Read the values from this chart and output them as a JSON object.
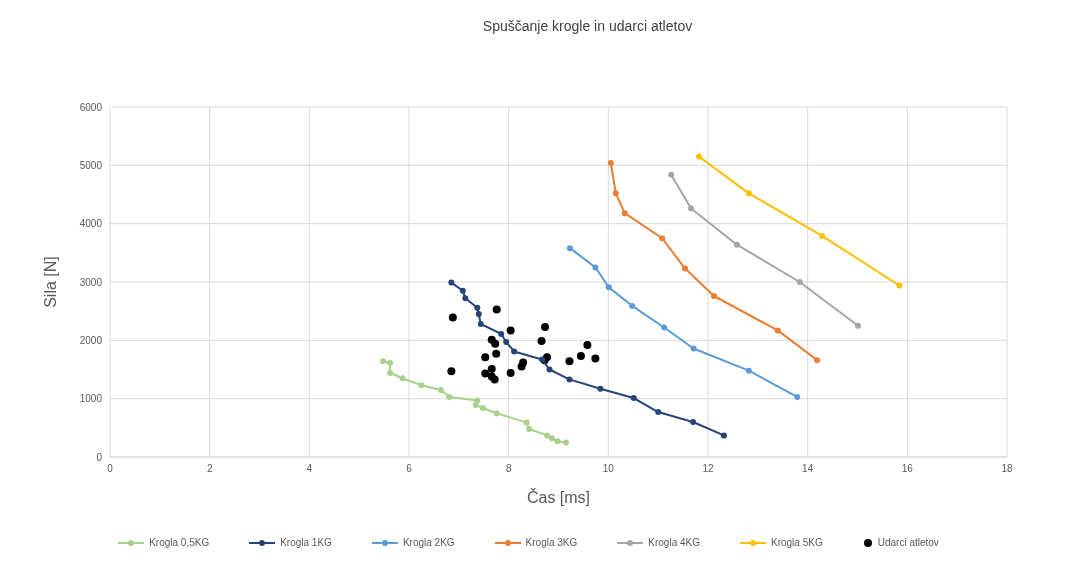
{
  "chart_data": {
    "type": "line",
    "title": "Spuščanje krogle in udarci atletov",
    "xlabel": "Čas [ms]",
    "ylabel": "Sila [N]",
    "xlim": [
      0,
      18
    ],
    "xticks": [
      0,
      2,
      4,
      6,
      8,
      10,
      12,
      14,
      16,
      18
    ],
    "ylim": [
      0,
      6000
    ],
    "yticks": [
      0,
      1000,
      2000,
      3000,
      4000,
      5000,
      6000
    ],
    "grid": true,
    "legend": "bottom",
    "marker": "circle",
    "line_style": "solid",
    "series": [
      {
        "name": "Krogla 0,5KG",
        "color": "#a9d18e",
        "x": [
          5.48,
          5.62,
          5.62,
          5.87,
          6.25,
          6.64,
          6.81,
          7.37,
          7.34,
          7.48,
          7.76,
          8.36,
          8.41,
          8.77,
          8.87,
          8.98,
          9.15
        ],
        "values": [
          1640,
          1610,
          1440,
          1350,
          1230,
          1150,
          1030,
          970,
          890,
          840,
          750,
          590,
          480,
          370,
          320,
          270,
          250
        ]
      },
      {
        "name": "Krogla 1KG",
        "color": "#264478",
        "x": [
          6.85,
          7.08,
          7.13,
          7.37,
          7.4,
          7.44,
          7.85,
          7.95,
          8.11,
          8.67,
          8.82,
          9.22,
          9.84,
          10.51,
          11.0,
          11.7,
          12.32
        ],
        "values": [
          2990,
          2850,
          2720,
          2560,
          2450,
          2280,
          2110,
          1970,
          1810,
          1670,
          1500,
          1330,
          1170,
          1010,
          770,
          600,
          370
        ]
      },
      {
        "name": "Krogla 2KG",
        "color": "#5b9bd5",
        "x": [
          9.23,
          9.74,
          10.01,
          10.48,
          11.12,
          11.71,
          12.82,
          13.79
        ],
        "values": [
          3580,
          3250,
          2910,
          2590,
          2220,
          1860,
          1480,
          1030
        ]
      },
      {
        "name": "Krogla 3KG",
        "color": "#ed7d31",
        "x": [
          10.05,
          10.15,
          10.33,
          11.08,
          11.54,
          12.12,
          13.4,
          14.19
        ],
        "values": [
          5040,
          4520,
          4180,
          3750,
          3230,
          2760,
          2170,
          1660
        ]
      },
      {
        "name": "Krogla 4KG",
        "color": "#a5a5a5",
        "x": [
          11.26,
          11.66,
          12.58,
          13.84,
          15.01
        ],
        "values": [
          4840,
          4260,
          3640,
          3000,
          2250
        ]
      },
      {
        "name": "Krogla 5KG",
        "color": "#ffc000",
        "x": [
          11.82,
          12.82,
          14.29,
          15.84
        ],
        "values": [
          5150,
          4520,
          3790,
          2940
        ]
      },
      {
        "name": "Udarci atletov",
        "type": "scatter",
        "color": "#000000",
        "x": [
          6.88,
          7.76,
          6.85,
          8.04,
          8.73,
          7.66,
          7.73,
          8.66,
          7.75,
          7.53,
          8.77,
          8.72,
          9.58,
          9.45,
          9.74,
          9.22,
          8.29,
          8.26,
          7.53,
          7.66,
          8.04,
          7.66,
          7.72
        ],
        "values": [
          2390,
          2530,
          1470,
          2170,
          2230,
          2010,
          1940,
          1990,
          1770,
          1710,
          1710,
          1660,
          1920,
          1730,
          1690,
          1640,
          1620,
          1550,
          1430,
          1510,
          1440,
          1380,
          1330
        ]
      }
    ]
  }
}
